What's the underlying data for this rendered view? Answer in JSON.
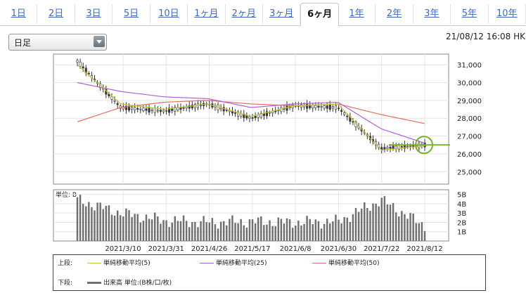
{
  "tabs": [
    "1日",
    "2日",
    "3日",
    "5日",
    "10日",
    "1ヶ月",
    "2ヶ月",
    "3ヶ月",
    "6ヶ月",
    "1年",
    "2年",
    "3年",
    "5年",
    "10年"
  ],
  "active_tab": "6ヶ月",
  "interval_select": {
    "value": "日足"
  },
  "timestamp": "21/08/12 16:08 HK",
  "price_axis": {
    "ticks": [
      "31,000",
      "30,000",
      "29,000",
      "28,000",
      "27,000",
      "26,000",
      "25,000"
    ],
    "ylim": [
      24300,
      31600
    ]
  },
  "volume_axis": {
    "unit_label": "単位: B",
    "ticks": [
      "5B",
      "4B",
      "3B",
      "2B",
      "1B"
    ],
    "ylim": [
      0,
      5.5
    ]
  },
  "date_labels": [
    "2021/3/10",
    "2021/3/31",
    "2021/4/26",
    "2021/5/17",
    "2021/6/8",
    "2021/6/30",
    "2021/7/22",
    "2021/8/12"
  ],
  "legend": {
    "upper_label": "上段:",
    "lower_label": "下段:",
    "ma5_label": "単純移動平均(5)",
    "ma25_label": "単純移動平均(25)",
    "ma50_label": "単純移動平均(50)",
    "volume_label": "出来高 単位:(B株/口/枚)"
  },
  "colors": {
    "ma5": "#c9c23a",
    "ma25": "#b060d8",
    "ma50": "#e07060",
    "candle_up": "#ffffff",
    "candle_down": "#3a3a3a",
    "volume": "#707070",
    "highlight": "#78b030"
  },
  "chart_data": [
    {
      "type": "candlestick",
      "x": [
        "2021/2/12",
        "2021/3/10",
        "2021/3/31",
        "2021/4/26",
        "2021/5/17",
        "2021/6/8",
        "2021/6/30",
        "2021/7/22",
        "2021/8/12"
      ],
      "close": [
        31200,
        28600,
        28400,
        28800,
        28000,
        28700,
        28600,
        26300,
        26500
      ],
      "ma5": [
        31000,
        28800,
        28500,
        28800,
        28100,
        28700,
        28800,
        26200,
        26450
      ],
      "ma25": [
        30000,
        29500,
        29200,
        29100,
        28600,
        28800,
        28900,
        27400,
        26600
      ],
      "ma50": [
        27800,
        28600,
        28900,
        29000,
        28800,
        28700,
        28800,
        28200,
        27700
      ],
      "ylim": [
        24300,
        31600
      ]
    },
    {
      "type": "bar",
      "x": [
        "2021/2/12",
        "2021/3/10",
        "2021/3/31",
        "2021/4/26",
        "2021/5/17",
        "2021/6/8",
        "2021/6/30",
        "2021/7/22",
        "2021/8/12"
      ],
      "values": [
        4.4,
        3.0,
        2.2,
        2.0,
        2.1,
        2.0,
        2.1,
        4.4,
        1.6
      ],
      "ylim": [
        0,
        5.5
      ]
    }
  ]
}
